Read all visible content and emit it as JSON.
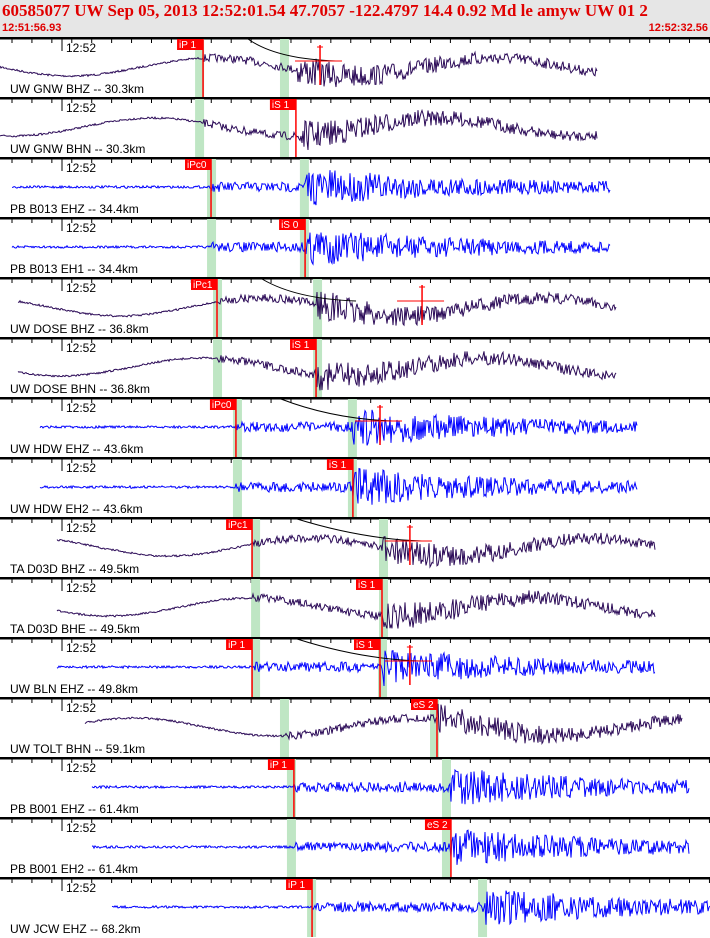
{
  "header": {
    "title": "60585077 UW Sep 05, 2013 12:52:01.54   47.7057 -122.4797 14.4 0.92 Md le amyw UW 01   2",
    "start_time": "12:51:56.93",
    "end_time": "12:52:32.56"
  },
  "window_seconds": 35.63,
  "colors": {
    "lp": "#2b0a57",
    "hf": "#0000ff",
    "pick": "#ff0000",
    "predicted": "#bfe6c4",
    "header_text": "#e00000"
  },
  "traces": [
    {
      "label": "UW GNW BHZ -- 30.3km",
      "time_label": "12:52",
      "kind": "lp",
      "start_s": 0.0,
      "end_s": 30.0,
      "p_s": 10.19,
      "s_s": 14.85,
      "predicted_s": [
        9.79,
        14.05
      ],
      "picks": [
        {
          "label": "iP 1",
          "t": 10.19
        }
      ],
      "amp_s": 16.06,
      "curve": true
    },
    {
      "label": "UW GNW BHN -- 30.3km",
      "time_label": "12:52",
      "kind": "lp",
      "start_s": 0.0,
      "end_s": 30.0,
      "p_s": 10.19,
      "s_s": 14.85,
      "predicted_s": [
        9.79,
        14.05
      ],
      "picks": [
        {
          "label": "iS 1",
          "t": 14.85
        }
      ]
    },
    {
      "label": "PB B013 EHZ -- 34.4km",
      "time_label": "12:52",
      "kind": "hf",
      "start_s": 0.6,
      "end_s": 30.61,
      "p_s": 10.59,
      "s_s": 15.31,
      "predicted_s": [
        10.39,
        15.05
      ],
      "picks": [
        {
          "label": "iPc0",
          "t": 10.59
        }
      ]
    },
    {
      "label": "PB B013 EH1 -- 34.4km",
      "time_label": "12:52",
      "kind": "hf",
      "start_s": 0.6,
      "end_s": 30.61,
      "p_s": 10.59,
      "s_s": 15.31,
      "predicted_s": [
        10.39,
        15.05
      ],
      "picks": [
        {
          "label": "iS 0",
          "t": 15.31
        }
      ]
    },
    {
      "label": "UW DOSE BHZ -- 36.8km",
      "time_label": "12:52",
      "kind": "lp",
      "start_s": 0.9,
      "end_s": 30.91,
      "p_s": 10.89,
      "s_s": 15.86,
      "predicted_s": [
        10.69,
        15.71
      ],
      "picks": [
        {
          "label": "iPc1",
          "t": 10.89
        }
      ],
      "amp_s": 21.18,
      "curve": true
    },
    {
      "label": "UW DOSE BHN -- 36.8km",
      "time_label": "12:52",
      "kind": "lp",
      "start_s": 0.9,
      "end_s": 30.91,
      "p_s": 10.89,
      "s_s": 15.86,
      "predicted_s": [
        10.69,
        15.71
      ],
      "picks": [
        {
          "label": "iS 1",
          "t": 15.86
        }
      ]
    },
    {
      "label": "UW HDW EHZ -- 43.6km",
      "time_label": "12:52",
      "kind": "hf",
      "start_s": 2.01,
      "end_s": 31.97,
      "p_s": 11.84,
      "s_s": 17.71,
      "predicted_s": [
        11.69,
        17.46
      ],
      "picks": [
        {
          "label": "iPc0",
          "t": 11.84
        }
      ],
      "amp_s": 19.07,
      "curve": true
    },
    {
      "label": "UW HDW EH2 -- 43.6km",
      "time_label": "12:52",
      "kind": "hf",
      "start_s": 2.01,
      "end_s": 31.97,
      "p_s": 11.84,
      "s_s": 17.71,
      "predicted_s": [
        11.69,
        17.46
      ],
      "picks": [
        {
          "label": "iS 1",
          "t": 17.71
        }
      ]
    },
    {
      "label": "TA D03D BHZ -- 49.5km",
      "time_label": "12:52",
      "kind": "lp",
      "start_s": 2.86,
      "end_s": 32.87,
      "p_s": 12.65,
      "s_s": 19.17,
      "predicted_s": [
        12.6,
        19.02
      ],
      "picks": [
        {
          "label": "iPc1",
          "t": 12.65
        }
      ],
      "amp_s": 20.57,
      "curve": true
    },
    {
      "label": "TA D03D BHE -- 49.5km",
      "time_label": "12:52",
      "kind": "lp",
      "start_s": 2.86,
      "end_s": 32.87,
      "p_s": 12.65,
      "s_s": 19.17,
      "predicted_s": [
        12.6,
        19.02
      ],
      "picks": [
        {
          "label": "iS 1",
          "t": 19.17
        }
      ]
    },
    {
      "label": "UW BLN EHZ -- 49.8km",
      "time_label": "12:52",
      "kind": "hf",
      "start_s": 2.86,
      "end_s": 32.87,
      "p_s": 12.65,
      "s_s": 19.07,
      "predicted_s": [
        12.6,
        18.97
      ],
      "picks": [
        {
          "label": "iP 1",
          "t": 12.65
        },
        {
          "label": "iS 1",
          "t": 19.07
        }
      ],
      "amp_s": 20.57,
      "curve": true
    },
    {
      "label": "UW TOLT BHN -- 59.1km",
      "time_label": "12:52",
      "kind": "lp",
      "start_s": 4.27,
      "end_s": 34.27,
      "p_s": 14.3,
      "s_s": 21.93,
      "predicted_s": [
        14.05,
        21.58
      ],
      "picks": [
        {
          "label": "eS 2",
          "t": 21.93
        }
      ]
    },
    {
      "label": "PB B001 EHZ -- 61.4km",
      "time_label": "12:52",
      "kind": "hf",
      "start_s": 4.62,
      "end_s": 34.62,
      "p_s": 14.75,
      "s_s": 22.63,
      "predicted_s": [
        14.4,
        22.18
      ],
      "picks": [
        {
          "label": "iP 1",
          "t": 14.75
        }
      ]
    },
    {
      "label": "PB B001 EH2 -- 61.4km",
      "time_label": "12:52",
      "kind": "hf",
      "start_s": 4.62,
      "end_s": 34.62,
      "p_s": 14.75,
      "s_s": 22.63,
      "predicted_s": [
        14.4,
        22.18
      ],
      "picks": [
        {
          "label": "eS 2",
          "t": 22.63
        }
      ]
    },
    {
      "label": "UW JCW EHZ -- 68.2km",
      "time_label": "12:52",
      "kind": "hf",
      "start_s": 5.62,
      "end_s": 35.63,
      "p_s": 15.66,
      "s_s": 24.2,
      "predicted_s": [
        15.41,
        23.99
      ],
      "picks": [
        {
          "label": "iP 1",
          "t": 15.66
        }
      ]
    }
  ]
}
